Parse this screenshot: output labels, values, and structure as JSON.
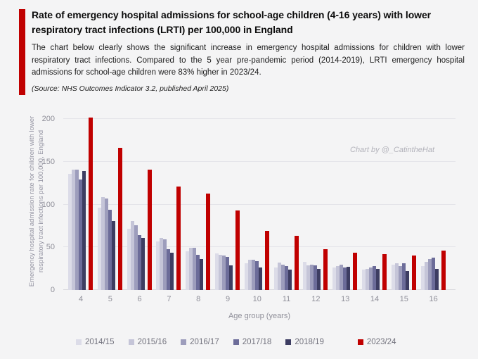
{
  "header": {
    "title": "Rate of emergency hospital admissions for school-age children (4-16 years) with lower respiratory tract infections (LRTI) per 100,000 in England",
    "subtitle": "The chart below clearly shows the significant increase in emergency hospital admissions for children with lower respiratory tract infections. Compared to the 5 year pre-pandemic period (2014-2019), LRTI emergency hospital admissions for school-age children were 83% higher in 2023/24.",
    "source": "(Source: NHS Outcomes Indicator 3.2, published April 2025)",
    "accent_color": "#c00000"
  },
  "watermark": "Chart by @_CatintheHat",
  "chart_data": {
    "type": "bar",
    "title": "Rate of emergency hospital admissions for school-age children (4-16 years) with lower respiratory tract infections (LRTI) per 100,000 in England",
    "xlabel": "Age group (years)",
    "ylabel": "Emergency hospital admission rate for children with lower respiratory tract infections per 100,000, England",
    "categories": [
      "4",
      "5",
      "6",
      "7",
      "8",
      "9",
      "10",
      "11",
      "12",
      "13",
      "14",
      "15",
      "16"
    ],
    "series": [
      {
        "name": "2014/15",
        "color": "#dcdce8",
        "values": [
          136,
          96,
          72,
          57,
          45,
          43,
          31,
          26,
          33,
          26,
          24,
          30,
          28
        ]
      },
      {
        "name": "2015/16",
        "color": "#c5c5d8",
        "values": [
          141,
          109,
          81,
          61,
          49,
          41,
          35,
          32,
          29,
          28,
          25,
          31,
          33
        ]
      },
      {
        "name": "2016/17",
        "color": "#9d9dbc",
        "values": [
          141,
          107,
          76,
          59,
          49,
          40,
          35,
          30,
          30,
          30,
          26,
          28,
          36
        ]
      },
      {
        "name": "2017/18",
        "color": "#6c6c99",
        "values": [
          129,
          94,
          64,
          48,
          41,
          39,
          34,
          28,
          29,
          26,
          28,
          31,
          38
        ]
      },
      {
        "name": "2018/19",
        "color": "#3d3d62",
        "values": [
          139,
          81,
          61,
          44,
          36,
          29,
          26,
          24,
          25,
          27,
          25,
          22,
          25
        ]
      },
      {
        "name": "2023/24",
        "color": "#c00000",
        "values": [
          202,
          166,
          141,
          121,
          113,
          93,
          69,
          63,
          48,
          44,
          42,
          40,
          46
        ]
      }
    ],
    "ylim": [
      0,
      200
    ],
    "yticks": [
      0,
      50,
      100,
      150,
      200
    ],
    "grid": true,
    "legend_position": "bottom"
  }
}
